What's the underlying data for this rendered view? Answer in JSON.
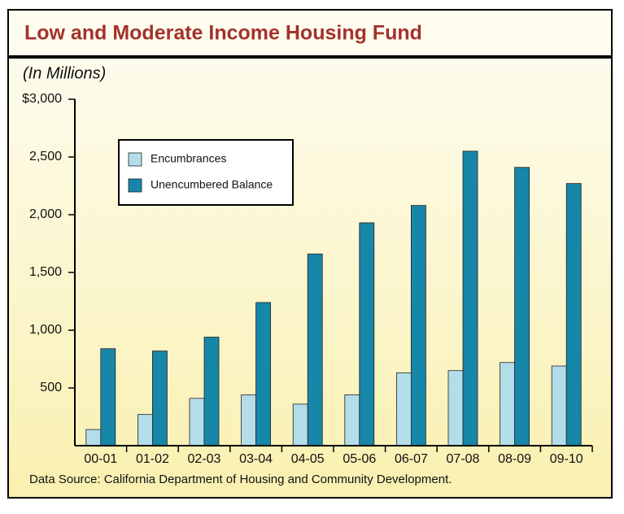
{
  "chart_data": {
    "type": "bar",
    "title": "Low and Moderate Income Housing Fund",
    "subtitle": "(In Millions)",
    "source": "Data Source: California Department of Housing and Community Development.",
    "categories": [
      "00-01",
      "01-02",
      "02-03",
      "03-04",
      "04-05",
      "05-06",
      "06-07",
      "07-08",
      "08-09",
      "09-10"
    ],
    "series": [
      {
        "name": "Encumbrances",
        "color": "#b3dde8",
        "values": [
          140,
          270,
          410,
          440,
          360,
          440,
          630,
          650,
          720,
          690
        ]
      },
      {
        "name": "Unencumbered Balance",
        "color": "#1686a9",
        "values": [
          840,
          820,
          940,
          1240,
          1660,
          1930,
          2080,
          2550,
          2410,
          2270
        ]
      }
    ],
    "ylim": [
      0,
      3000
    ],
    "yticks": [
      500,
      {
        "value": 1000,
        "label": "1,000"
      },
      {
        "value": 1500,
        "label": "1,500"
      },
      {
        "value": 2000,
        "label": "2,000"
      },
      {
        "value": 2500,
        "label": "2,500"
      },
      {
        "value": 3000,
        "label": "$3,000"
      }
    ],
    "legend": "upper-left"
  }
}
